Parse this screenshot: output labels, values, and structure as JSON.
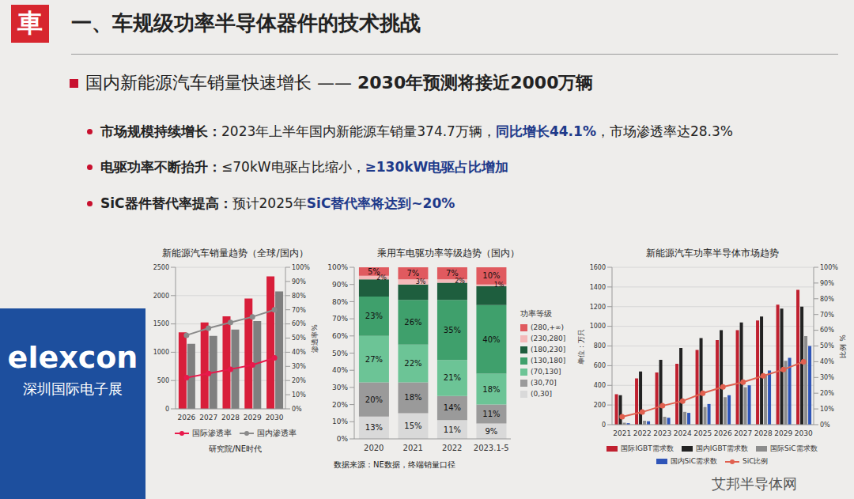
{
  "header": {
    "logo": "車",
    "title": "一、车规级功率半导体器件的技术挑战"
  },
  "subheading": {
    "text": "国内新能源汽车销量快速增长 ——",
    "highlight": "2030年预测将接近2000万辆"
  },
  "bullets": [
    {
      "label": "市场规模持续增长：",
      "before": "2023年上半年国内新能源车销量374.7万辆，",
      "highlight": "同比增长44.1%",
      "after": "，市场渗透率达28.3%"
    },
    {
      "label": "电驱功率不断抬升：",
      "before": "≤70kW电驱占比缩小，",
      "highlight": "≥130kW电驱占比增加"
    },
    {
      "label": "SiC器件替代率提高：",
      "before": "预计2025年",
      "highlight": "SiC替代率将达到~20%"
    }
  ],
  "banner": {
    "brand": "elexcon",
    "name": "深圳国际电子展"
  },
  "watermark": "艾邦半导体网",
  "chart_data": [
    {
      "type": "combo",
      "title": "新能源汽车销量趋势（全球/国内）",
      "categories": [
        "2026",
        "2027",
        "2028",
        "2029",
        "2030"
      ],
      "ylim": [
        0,
        2500
      ],
      "yticks": [
        0,
        500,
        1000,
        1500,
        2000,
        2500
      ],
      "y2lim": [
        0,
        100
      ],
      "y2ticks": [
        {
          "value": 0,
          "label": "0%"
        },
        {
          "value": 10,
          "label": "10%"
        },
        {
          "value": 20,
          "label": "20%"
        },
        {
          "value": 30,
          "label": "30%"
        },
        {
          "value": 40,
          "label": "40%"
        },
        {
          "value": 50,
          "label": "50%"
        },
        {
          "value": 60,
          "label": "60%"
        },
        {
          "value": 70,
          "label": "70%"
        },
        {
          "value": 80,
          "label": "80%"
        },
        {
          "value": 90,
          "label": "90%"
        },
        {
          "value": 100,
          "label": "100%"
        }
      ],
      "y2label": "渗透率%",
      "grid": true,
      "legend": "bottom",
      "series": [
        {
          "type": "bar",
          "color": "#d81e3a",
          "values": [
            1350,
            1525,
            1635,
            1950,
            2340
          ]
        },
        {
          "type": "bar",
          "color": "#7f7f7f",
          "values": [
            1150,
            1290,
            1400,
            1550,
            2075
          ]
        },
        {
          "type": "line",
          "name": "国际渗透率",
          "color": "#e8194b",
          "marker": "circle",
          "axis": "y2",
          "values": [
            22,
            25,
            28,
            31,
            36
          ]
        },
        {
          "type": "line",
          "name": "国内渗透率",
          "color": "#8a8a8a",
          "marker": "circle",
          "axis": "y2",
          "values": [
            52,
            57,
            61,
            65,
            70
          ]
        }
      ],
      "source": "研究院/NE时代"
    },
    {
      "type": "bar",
      "stacked": true,
      "title": "乘用车电驱功率等级趋势（国内）",
      "categories": [
        "2020",
        "2021",
        "2022",
        "2023.1-5"
      ],
      "ylim": [
        0,
        100
      ],
      "yticks": [
        {
          "value": 0,
          "label": "0%"
        },
        {
          "value": 10,
          "label": "10%"
        },
        {
          "value": 20,
          "label": "20%"
        },
        {
          "value": 30,
          "label": "30%"
        },
        {
          "value": 40,
          "label": "40%"
        },
        {
          "value": 50,
          "label": "50%"
        },
        {
          "value": 60,
          "label": "60%"
        },
        {
          "value": 70,
          "label": "70%"
        },
        {
          "value": 80,
          "label": "80%"
        },
        {
          "value": 90,
          "label": "90%"
        },
        {
          "value": 100,
          "label": "100%"
        }
      ],
      "grid": false,
      "data_labels": true,
      "legend": "right",
      "legend_title": "功率等级",
      "series": [
        {
          "name": "(0,30]",
          "color": "#d9d9d9",
          "values": [
            13,
            15,
            11,
            9
          ],
          "value_labels": [
            "13%",
            "15%",
            "11%",
            "9%"
          ]
        },
        {
          "name": "(30,70]",
          "color": "#9a9a9a",
          "values": [
            20,
            18,
            14,
            11
          ],
          "value_labels": [
            "20%",
            "18%",
            "14%",
            "11%"
          ]
        },
        {
          "name": "(70,130]",
          "color": "#6cc496",
          "values": [
            27,
            22,
            21,
            18
          ],
          "value_labels": [
            "27%",
            "22%",
            "21%",
            "18%"
          ]
        },
        {
          "name": "(130,180]",
          "color": "#3fa06c",
          "values": [
            23,
            26,
            35,
            40
          ],
          "value_labels": [
            "23%",
            "26%",
            "35%",
            "40%"
          ]
        },
        {
          "name": "(180,230]",
          "color": "#1e5e3e",
          "values": [
            10,
            9,
            10,
            11
          ],
          "value_labels": [
            null,
            null,
            null,
            null
          ]
        },
        {
          "name": "(230,280]",
          "color": "#f4b9b9",
          "values": [
            2,
            3,
            2,
            1
          ],
          "value_labels": [
            "2%",
            "3%",
            "2%",
            "1%"
          ]
        },
        {
          "name": "(280,+∞)",
          "color": "#e05a5f",
          "values": [
            5,
            7,
            7,
            10
          ],
          "value_labels": [
            "5%",
            "7%",
            "7%",
            "10%"
          ]
        }
      ],
      "source": "数据来源：NE数据，终端销量口径"
    },
    {
      "type": "combo",
      "title": "新能源汽车功率半导体市场趋势",
      "categories": [
        "2021",
        "2022",
        "2023",
        "2024",
        "2025",
        "2026",
        "2027",
        "2028",
        "2029",
        "2030"
      ],
      "ylim": [
        0,
        1600
      ],
      "yticks": [
        0,
        200,
        400,
        600,
        800,
        1000,
        1200,
        1400,
        1600
      ],
      "ylabel": "单位：万只",
      "y2lim": [
        0,
        100
      ],
      "y2ticks": [
        {
          "value": 0,
          "label": "0%"
        },
        {
          "value": 10,
          "label": "10%"
        },
        {
          "value": 20,
          "label": "20%"
        },
        {
          "value": 30,
          "label": "30%"
        },
        {
          "value": 40,
          "label": "40%"
        },
        {
          "value": 50,
          "label": "50%"
        },
        {
          "value": 60,
          "label": "60%"
        },
        {
          "value": 70,
          "label": "70%"
        },
        {
          "value": 80,
          "label": "80%"
        },
        {
          "value": 90,
          "label": "90%"
        },
        {
          "value": 100,
          "label": "100%"
        }
      ],
      "y2label": "比例 %",
      "grid": true,
      "legend": "bottom",
      "series": [
        {
          "type": "bar",
          "name": "国际IGBT需求数",
          "color": "#c0202f",
          "values": [
            310,
            470,
            530,
            620,
            760,
            860,
            960,
            1060,
            1220,
            1370
          ]
        },
        {
          "type": "bar",
          "name": "国内IGBT需求数",
          "color": "#222222",
          "values": [
            300,
            540,
            660,
            780,
            880,
            960,
            1040,
            1100,
            1180,
            1200
          ]
        },
        {
          "type": "bar",
          "name": "国际SiC需求数",
          "color": "#8c8c8c",
          "values": [
            20,
            40,
            80,
            130,
            180,
            280,
            380,
            500,
            650,
            900
          ]
        },
        {
          "type": "bar",
          "name": "国内SiC需求数",
          "color": "#2f55b8",
          "values": [
            15,
            35,
            70,
            120,
            210,
            300,
            400,
            550,
            680,
            800
          ]
        },
        {
          "type": "line",
          "name": "SiC比例",
          "color": "#e0604f",
          "marker": "circle",
          "axis": "y2",
          "values": [
            5,
            8,
            12,
            15,
            20,
            24,
            27,
            31,
            35,
            40
          ]
        }
      ]
    }
  ]
}
